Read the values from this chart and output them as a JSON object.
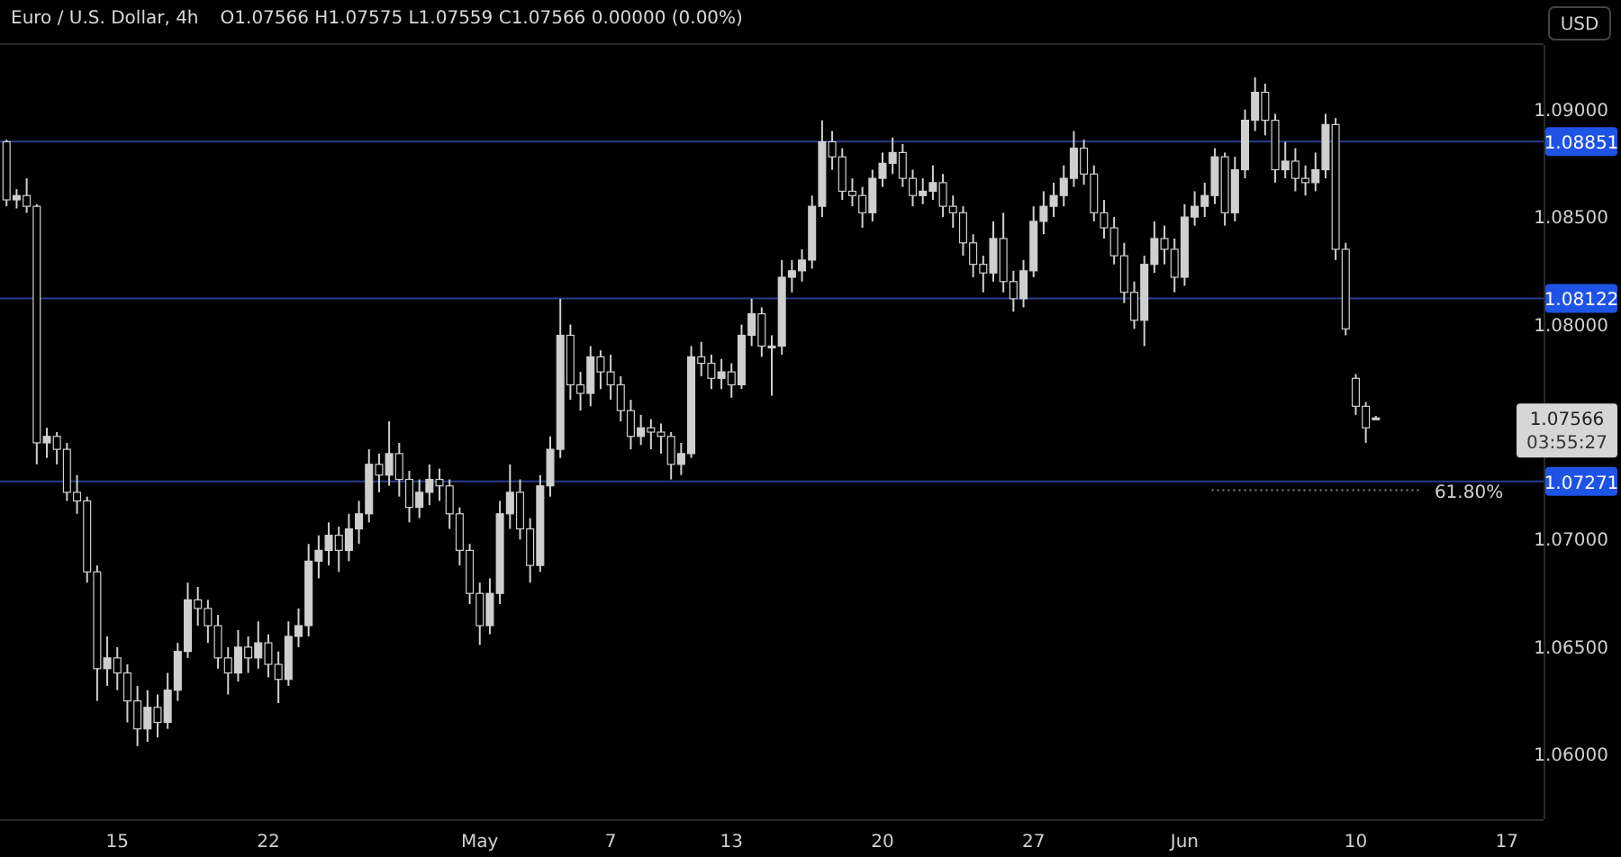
{
  "chart_data": {
    "type": "candlestick",
    "title": "Euro / U.S. Dollar, 4h",
    "subtitle": "O1.07566 H1.07575 L1.07559 C1.07566 0.00000 (0.00%)",
    "ylabel": "USD",
    "color": "#cfcfcf",
    "categories": [
      null,
      null,
      null,
      null,
      null,
      null,
      null,
      null,
      null,
      null,
      null,
      "15",
      null,
      null,
      null,
      null,
      null,
      null,
      null,
      null,
      null,
      null,
      null,
      null,
      null,
      null,
      "22",
      null,
      null,
      null,
      null,
      null,
      null,
      null,
      null,
      null,
      null,
      null,
      null,
      null,
      null,
      null,
      null,
      null,
      null,
      null,
      null,
      "May",
      null,
      null,
      null,
      null,
      null,
      null,
      null,
      null,
      null,
      null,
      null,
      null,
      "7",
      null,
      null,
      null,
      null,
      null,
      null,
      null,
      null,
      null,
      null,
      null,
      "13",
      null,
      null,
      null,
      null,
      null,
      null,
      null,
      null,
      null,
      null,
      null,
      null,
      null,
      null,
      "20",
      null,
      null,
      null,
      null,
      null,
      null,
      null,
      null,
      null,
      null,
      null,
      null,
      null,
      null,
      "27",
      null,
      null,
      null,
      null,
      null,
      null,
      null,
      null,
      null,
      null,
      null,
      null,
      null,
      null,
      "Jun",
      null,
      null,
      null,
      null,
      null,
      null,
      null,
      null,
      null,
      null,
      null,
      null,
      null,
      null,
      null,
      null,
      "10",
      null,
      null,
      null,
      null,
      null,
      null,
      null,
      null,
      null,
      null,
      null,
      null,
      null,
      null,
      "17",
      null,
      null,
      null
    ],
    "ohlc": [
      [
        1.0885,
        1.0886,
        1.0855,
        1.0858
      ],
      [
        1.0858,
        1.0863,
        1.0854,
        1.086
      ],
      [
        1.086,
        1.0868,
        1.0852,
        1.0855
      ],
      [
        1.0855,
        1.0856,
        1.0735,
        1.0745
      ],
      [
        1.0745,
        1.0752,
        1.0738,
        1.0748
      ],
      [
        1.0748,
        1.075,
        1.0735,
        1.0742
      ],
      [
        1.0742,
        1.0745,
        1.0718,
        1.0722
      ],
      [
        1.0722,
        1.073,
        1.0712,
        1.0718
      ],
      [
        1.0718,
        1.072,
        1.068,
        1.0685
      ],
      [
        1.0685,
        1.0688,
        1.0625,
        1.064
      ],
      [
        1.064,
        1.0655,
        1.0632,
        1.0645
      ],
      [
        1.0645,
        1.065,
        1.063,
        1.0638
      ],
      [
        1.0638,
        1.0642,
        1.0615,
        1.0625
      ],
      [
        1.0625,
        1.0632,
        1.0604,
        1.0612
      ],
      [
        1.0612,
        1.063,
        1.0606,
        1.0622
      ],
      [
        1.0622,
        1.0628,
        1.0608,
        1.0615
      ],
      [
        1.0615,
        1.0638,
        1.0612,
        1.063
      ],
      [
        1.063,
        1.0652,
        1.0625,
        1.0648
      ],
      [
        1.0648,
        1.068,
        1.0645,
        1.0672
      ],
      [
        1.0672,
        1.0678,
        1.066,
        1.0668
      ],
      [
        1.0668,
        1.0672,
        1.0652,
        1.066
      ],
      [
        1.066,
        1.0665,
        1.064,
        1.0645
      ],
      [
        1.0645,
        1.065,
        1.0628,
        1.0638
      ],
      [
        1.0638,
        1.0658,
        1.0634,
        1.065
      ],
      [
        1.065,
        1.0655,
        1.0638,
        1.0645
      ],
      [
        1.0645,
        1.0662,
        1.064,
        1.0652
      ],
      [
        1.0652,
        1.0656,
        1.0636,
        1.0642
      ],
      [
        1.0642,
        1.0648,
        1.0624,
        1.0635
      ],
      [
        1.0635,
        1.0662,
        1.0632,
        1.0655
      ],
      [
        1.0655,
        1.0668,
        1.065,
        1.066
      ],
      [
        1.066,
        1.0698,
        1.0655,
        1.069
      ],
      [
        1.069,
        1.0702,
        1.0682,
        1.0695
      ],
      [
        1.0695,
        1.0708,
        1.0688,
        1.0702
      ],
      [
        1.0702,
        1.0706,
        1.0685,
        1.0695
      ],
      [
        1.0695,
        1.0712,
        1.069,
        1.0705
      ],
      [
        1.0705,
        1.0718,
        1.0698,
        1.0712
      ],
      [
        1.0712,
        1.0742,
        1.0708,
        1.0735
      ],
      [
        1.0735,
        1.074,
        1.0722,
        1.073
      ],
      [
        1.073,
        1.0755,
        1.0725,
        1.074
      ],
      [
        1.074,
        1.0745,
        1.072,
        1.0728
      ],
      [
        1.0728,
        1.0732,
        1.0708,
        1.0715
      ],
      [
        1.0715,
        1.0728,
        1.071,
        1.0722
      ],
      [
        1.0722,
        1.0735,
        1.0716,
        1.0728
      ],
      [
        1.0728,
        1.0733,
        1.0718,
        1.0725
      ],
      [
        1.0725,
        1.0728,
        1.0705,
        1.0712
      ],
      [
        1.0712,
        1.0715,
        1.0688,
        1.0695
      ],
      [
        1.0695,
        1.0698,
        1.067,
        1.0675
      ],
      [
        1.0675,
        1.068,
        1.0651,
        1.066
      ],
      [
        1.066,
        1.0682,
        1.0656,
        1.0675
      ],
      [
        1.0675,
        1.0718,
        1.067,
        1.0712
      ],
      [
        1.0712,
        1.0735,
        1.0705,
        1.0722
      ],
      [
        1.0722,
        1.0728,
        1.07,
        1.0705
      ],
      [
        1.0705,
        1.071,
        1.068,
        1.0688
      ],
      [
        1.0688,
        1.073,
        1.0685,
        1.0725
      ],
      [
        1.0725,
        1.0748,
        1.072,
        1.0742
      ],
      [
        1.0742,
        1.0812,
        1.0738,
        1.0795
      ],
      [
        1.0795,
        1.08,
        1.0765,
        1.0772
      ],
      [
        1.0772,
        1.0778,
        1.076,
        1.0768
      ],
      [
        1.0768,
        1.079,
        1.0762,
        1.0785
      ],
      [
        1.0785,
        1.0788,
        1.077,
        1.0778
      ],
      [
        1.0778,
        1.0786,
        1.0765,
        1.0772
      ],
      [
        1.0772,
        1.0776,
        1.0755,
        1.076
      ],
      [
        1.076,
        1.0765,
        1.0742,
        1.0748
      ],
      [
        1.0748,
        1.0758,
        1.0744,
        1.0752
      ],
      [
        1.0752,
        1.0756,
        1.0742,
        1.075
      ],
      [
        1.075,
        1.0754,
        1.074,
        1.0748
      ],
      [
        1.0748,
        1.075,
        1.0728,
        1.0735
      ],
      [
        1.0735,
        1.0745,
        1.073,
        1.074
      ],
      [
        1.074,
        1.079,
        1.0738,
        1.0785
      ],
      [
        1.0785,
        1.0792,
        1.0776,
        1.0782
      ],
      [
        1.0782,
        1.0786,
        1.077,
        1.0775
      ],
      [
        1.0775,
        1.0784,
        1.077,
        1.0778
      ],
      [
        1.0778,
        1.0782,
        1.0766,
        1.0772
      ],
      [
        1.0772,
        1.08,
        1.077,
        1.0795
      ],
      [
        1.0795,
        1.0812,
        1.079,
        1.0805
      ],
      [
        1.0805,
        1.0808,
        1.0785,
        1.079
      ],
      [
        1.079,
        1.0795,
        1.0767,
        1.079
      ],
      [
        1.079,
        1.083,
        1.0786,
        1.0822
      ],
      [
        1.0822,
        1.083,
        1.0815,
        1.0825
      ],
      [
        1.0825,
        1.0835,
        1.082,
        1.083
      ],
      [
        1.083,
        1.086,
        1.0826,
        1.0855
      ],
      [
        1.0855,
        1.0895,
        1.085,
        1.0885
      ],
      [
        1.0885,
        1.089,
        1.0872,
        1.0878
      ],
      [
        1.0878,
        1.0882,
        1.0858,
        1.0862
      ],
      [
        1.0862,
        1.0868,
        1.0855,
        1.086
      ],
      [
        1.086,
        1.0864,
        1.0845,
        1.0852
      ],
      [
        1.0852,
        1.0872,
        1.0848,
        1.0868
      ],
      [
        1.0868,
        1.088,
        1.0864,
        1.0875
      ],
      [
        1.0875,
        1.0887,
        1.087,
        1.088
      ],
      [
        1.088,
        1.0884,
        1.0864,
        1.0868
      ],
      [
        1.0868,
        1.0872,
        1.0855,
        1.086
      ],
      [
        1.086,
        1.0868,
        1.0856,
        1.0862
      ],
      [
        1.0862,
        1.0874,
        1.0858,
        1.0866
      ],
      [
        1.0866,
        1.087,
        1.085,
        1.0855
      ],
      [
        1.0855,
        1.086,
        1.0845,
        1.0852
      ],
      [
        1.0852,
        1.0855,
        1.0832,
        1.0838
      ],
      [
        1.0838,
        1.0842,
        1.0822,
        1.0828
      ],
      [
        1.0828,
        1.0832,
        1.0815,
        1.0824
      ],
      [
        1.0824,
        1.0848,
        1.082,
        1.084
      ],
      [
        1.084,
        1.0852,
        1.0815,
        1.082
      ],
      [
        1.082,
        1.0825,
        1.0806,
        1.0812
      ],
      [
        1.0812,
        1.083,
        1.0808,
        1.0825
      ],
      [
        1.0825,
        1.0855,
        1.0822,
        1.0848
      ],
      [
        1.0848,
        1.0862,
        1.0842,
        1.0855
      ],
      [
        1.0855,
        1.0866,
        1.085,
        1.086
      ],
      [
        1.086,
        1.0874,
        1.0855,
        1.0868
      ],
      [
        1.0868,
        1.089,
        1.0864,
        1.0882
      ],
      [
        1.0882,
        1.0886,
        1.0865,
        1.087
      ],
      [
        1.087,
        1.0874,
        1.0848,
        1.0852
      ],
      [
        1.0852,
        1.0858,
        1.084,
        1.0845
      ],
      [
        1.0845,
        1.085,
        1.0828,
        1.0832
      ],
      [
        1.0832,
        1.0838,
        1.081,
        1.0815
      ],
      [
        1.0815,
        1.082,
        1.0798,
        1.0802
      ],
      [
        1.0802,
        1.0832,
        1.079,
        1.0828
      ],
      [
        1.0828,
        1.0848,
        1.0824,
        1.084
      ],
      [
        1.084,
        1.0846,
        1.0828,
        1.0835
      ],
      [
        1.0835,
        1.084,
        1.0815,
        1.0822
      ],
      [
        1.0822,
        1.0856,
        1.0818,
        1.085
      ],
      [
        1.085,
        1.0862,
        1.0846,
        1.0855
      ],
      [
        1.0855,
        1.0866,
        1.085,
        1.086
      ],
      [
        1.086,
        1.0882,
        1.0856,
        1.0878
      ],
      [
        1.0878,
        1.088,
        1.0846,
        1.0852
      ],
      [
        1.0852,
        1.0878,
        1.0848,
        1.0872
      ],
      [
        1.0872,
        1.09,
        1.0868,
        1.0895
      ],
      [
        1.0895,
        1.0915,
        1.089,
        1.0908
      ],
      [
        1.0908,
        1.0912,
        1.0888,
        1.0895
      ],
      [
        1.0895,
        1.0898,
        1.0866,
        1.0872
      ],
      [
        1.0872,
        1.0885,
        1.0868,
        1.0876
      ],
      [
        1.0876,
        1.0882,
        1.0862,
        1.0868
      ],
      [
        1.0868,
        1.0874,
        1.086,
        1.0866
      ],
      [
        1.0866,
        1.088,
        1.0862,
        1.0872
      ],
      [
        1.0872,
        1.0898,
        1.0868,
        1.0893
      ],
      [
        1.0893,
        1.0896,
        1.083,
        1.0835
      ],
      [
        1.0835,
        1.0838,
        1.0795,
        1.0798
      ],
      [
        1.0775,
        1.0777,
        1.0758,
        1.0762
      ],
      [
        1.0762,
        1.0764,
        1.0745,
        1.0752
      ],
      [
        1.07566,
        1.07575,
        1.07559,
        1.07566
      ],
      null,
      null,
      null,
      null,
      null,
      null,
      null,
      null,
      null,
      null,
      null,
      null,
      null,
      null,
      null,
      null
    ],
    "ylim": [
      1.057,
      1.093
    ],
    "yticks": [
      {
        "value": 1.06,
        "label": "1.06000"
      },
      {
        "value": 1.065,
        "label": "1.06500"
      },
      {
        "value": 1.07,
        "label": "1.07000"
      },
      {
        "value": 1.08,
        "label": "1.08000"
      },
      {
        "value": 1.085,
        "label": "1.08500"
      },
      {
        "value": 1.09,
        "label": "1.09000"
      }
    ],
    "ref_lines": [
      {
        "axis": "y",
        "value": 1.08851,
        "label": "1.08851",
        "color": "#2e3a8c"
      },
      {
        "axis": "y",
        "value": 1.08122,
        "label": "1.08122",
        "color": "#2e3a8c"
      },
      {
        "axis": "y",
        "value": 1.07271,
        "label": "1.07271",
        "color": "#2e3a8c"
      },
      {
        "axis": "y",
        "value": 1.0723,
        "color": "#8a8a8a",
        "line_style": "dotted"
      }
    ],
    "annotations": [
      "1.07566",
      "03:55:27",
      "61.80%"
    ],
    "grid": false
  }
}
